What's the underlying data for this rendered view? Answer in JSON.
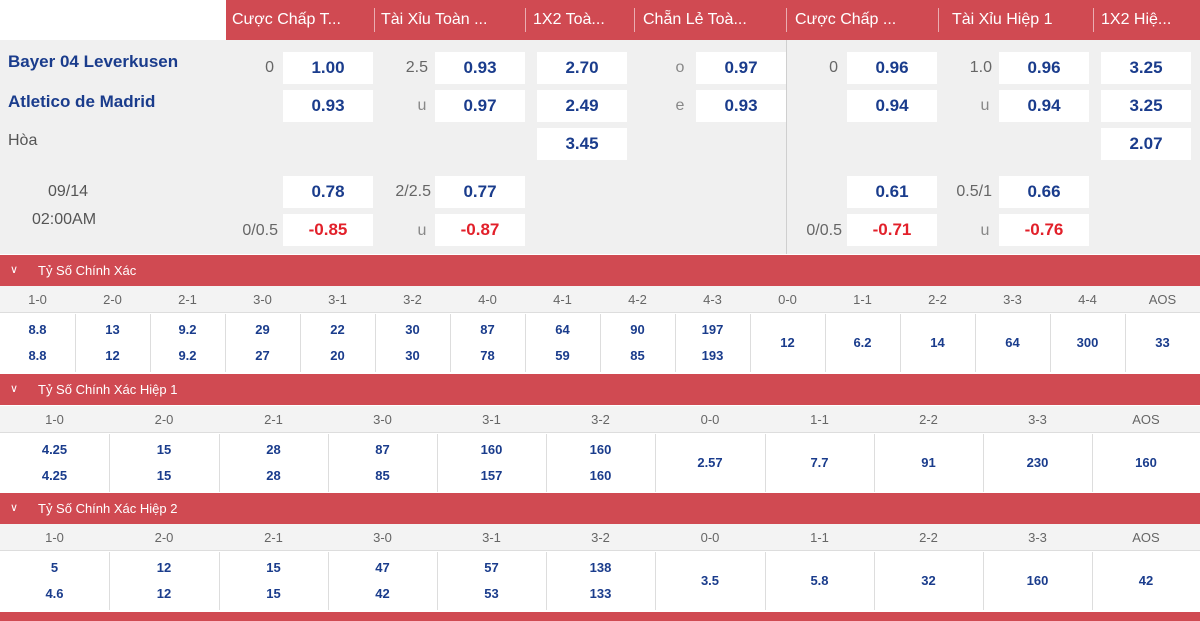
{
  "odds": {
    "headers": [
      "Cược Chấp T...",
      "Tài Xỉu Toàn ...",
      "1X2 Toà...",
      "Chẵn Lẻ Toà...",
      "Cược Chấp ...",
      "Tài Xỉu Hiệp 1",
      "1X2 Hiệ..."
    ],
    "home_team": "Bayer 04 Leverkusen",
    "away_team": "Atletico de Madrid",
    "draw_label": "Hòa",
    "date": "09/14",
    "time": "02:00AM",
    "row1": {
      "ah_line": "0",
      "ah_val": "1.00",
      "ou_line": "2.5",
      "ou_val": "0.93",
      "x12": "2.70",
      "oe_label": "o",
      "oe_val": "0.97",
      "h1_ah_line": "0",
      "h1_ah_val": "0.96",
      "h1_ou_line": "1.0",
      "h1_ou_val": "0.96",
      "h1_x12": "3.25"
    },
    "row2": {
      "ah_val": "0.93",
      "ou_label": "u",
      "ou_val": "0.97",
      "x12": "2.49",
      "oe_label": "e",
      "oe_val": "0.93",
      "h1_ah_val": "0.94",
      "h1_ou_label": "u",
      "h1_ou_val": "0.94",
      "h1_x12": "3.25"
    },
    "row3": {
      "x12": "3.45",
      "h1_x12": "2.07"
    },
    "row4": {
      "ah_val": "0.78",
      "ou_line": "2/2.5",
      "ou_val": "0.77",
      "h1_ah_val": "0.61",
      "h1_ou_line": "0.5/1",
      "h1_ou_val": "0.66"
    },
    "row5": {
      "ah_line": "0/0.5",
      "ah_val": "-0.85",
      "ou_label": "u",
      "ou_val": "-0.87",
      "h1_ah_line": "0/0.5",
      "h1_ah_val": "-0.71",
      "h1_ou_label": "u",
      "h1_ou_val": "-0.76"
    }
  },
  "correct_score": {
    "title": "Tỷ Số Chính Xác",
    "scores": [
      "1-0",
      "2-0",
      "2-1",
      "3-0",
      "3-1",
      "3-2",
      "4-0",
      "4-1",
      "4-2",
      "4-3",
      "0-0",
      "1-1",
      "2-2",
      "3-3",
      "4-4",
      "AOS"
    ],
    "home": [
      "8.8",
      "13",
      "9.2",
      "29",
      "22",
      "30",
      "87",
      "64",
      "90",
      "197"
    ],
    "away": [
      "8.8",
      "12",
      "9.2",
      "27",
      "20",
      "30",
      "78",
      "59",
      "85",
      "193"
    ],
    "draws": [
      "12",
      "6.2",
      "14",
      "64",
      "300",
      "33"
    ]
  },
  "h1_correct_score": {
    "title": "Tỷ Số Chính Xác Hiệp 1",
    "scores": [
      "1-0",
      "2-0",
      "2-1",
      "3-0",
      "3-1",
      "3-2",
      "0-0",
      "1-1",
      "2-2",
      "3-3",
      "AOS"
    ],
    "home": [
      "4.25",
      "15",
      "28",
      "87",
      "160",
      "160"
    ],
    "away": [
      "4.25",
      "15",
      "28",
      "85",
      "157",
      "160"
    ],
    "draws": [
      "2.57",
      "7.7",
      "91",
      "230",
      "160"
    ]
  },
  "h2_correct_score": {
    "title": "Tỷ Số Chính Xác Hiệp 2",
    "scores": [
      "1-0",
      "2-0",
      "2-1",
      "3-0",
      "3-1",
      "3-2",
      "0-0",
      "1-1",
      "2-2",
      "3-3",
      "AOS"
    ],
    "home": [
      "5",
      "12",
      "15",
      "47",
      "57",
      "138"
    ],
    "away": [
      "4.6",
      "12",
      "15",
      "42",
      "53",
      "133"
    ],
    "draws": [
      "3.5",
      "5.8",
      "32",
      "160",
      "42"
    ]
  },
  "colors": {
    "accent_red": "#d04a52",
    "odds_blue": "#1a3c8c",
    "negative_red": "#e2202a"
  },
  "icons": {
    "section_toggle": "chevron-down-icon"
  }
}
